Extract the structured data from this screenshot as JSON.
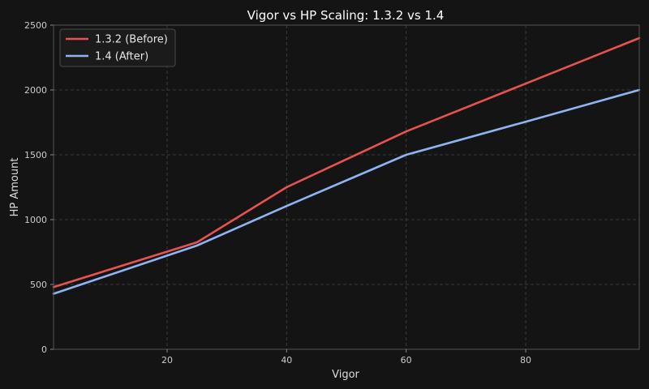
{
  "chart_data": {
    "type": "line",
    "title": "Vigor vs HP Scaling: 1.3.2 vs 1.4",
    "xlabel": "Vigor",
    "ylabel": "HP Amount",
    "xlim": [
      1,
      99
    ],
    "ylim": [
      0,
      2500
    ],
    "xticks": [
      20,
      40,
      60,
      80
    ],
    "yticks": [
      0,
      500,
      1000,
      1500,
      2000,
      2500
    ],
    "grid": true,
    "legend_position": "top-left",
    "series": [
      {
        "name": "1.3.2 (Before)",
        "color": "#e8524f",
        "x": [
          1,
          25,
          40,
          60,
          99
        ],
        "y": [
          480,
          825,
          1250,
          1680,
          2400
        ]
      },
      {
        "name": "1.4 (After)",
        "color": "#8fb4f2",
        "x": [
          1,
          25,
          40,
          60,
          80,
          99
        ],
        "y": [
          428,
          800,
          1105,
          1500,
          1755,
          2000
        ]
      }
    ]
  }
}
